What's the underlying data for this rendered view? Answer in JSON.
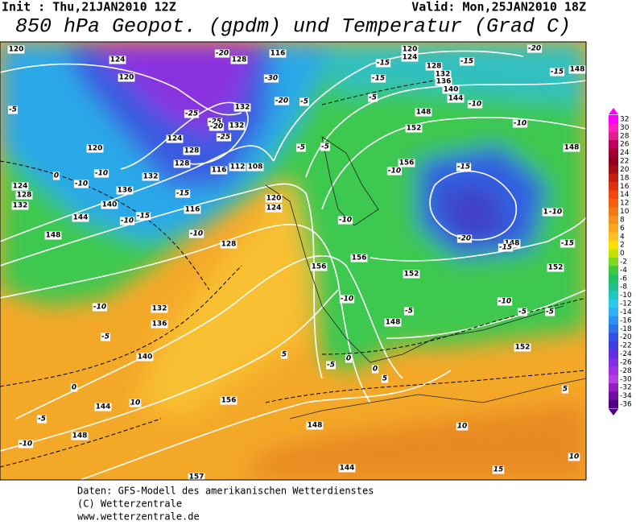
{
  "header": {
    "init": "Init : Thu,21JAN2010 12Z",
    "valid": "Valid: Mon,25JAN2010 18Z",
    "title": "850 hPa Geopot. (gpdm) und Temperatur (Grad C)"
  },
  "map": {
    "geopotential_labels": [
      "120",
      "124",
      "120",
      "128",
      "132",
      "132",
      "124",
      "128",
      "128",
      "116",
      "112",
      "108",
      "120",
      "124",
      "116",
      "120",
      "132",
      "136",
      "140",
      "144",
      "148",
      "124",
      "128",
      "132",
      "128",
      "132",
      "136",
      "140",
      "144",
      "148",
      "157",
      "156",
      "148",
      "144",
      "156",
      "156",
      "152",
      "148",
      "152",
      "152",
      "148",
      "144",
      "148",
      "152",
      "148",
      "156",
      "120",
      "124",
      "128",
      "132",
      "136",
      "140",
      "144",
      "148",
      "116"
    ],
    "temperature_labels": [
      "-20",
      "-30",
      "-20",
      "-25",
      "-25",
      "-20",
      "-25",
      "-5",
      "-10",
      "-10",
      "0",
      "-10",
      "-15",
      "-15",
      "-10",
      "-10",
      "-5",
      "0",
      "-5",
      "-10",
      "-5",
      "-5",
      "-5",
      "-5",
      "-15",
      "-15",
      "-15",
      "-15",
      "-20",
      "-10",
      "-10",
      "-15",
      "-10",
      "-10",
      "-20",
      "-15",
      "-10",
      "-15",
      "-10",
      "-5",
      "-10",
      "-5",
      "-5",
      "-5",
      "0",
      "5",
      "5",
      "0",
      "10",
      "10",
      "15",
      "5",
      "10"
    ]
  },
  "legend": {
    "values": [
      32,
      30,
      28,
      26,
      24,
      22,
      20,
      18,
      16,
      14,
      12,
      10,
      8,
      6,
      4,
      2,
      0,
      -2,
      -4,
      -6,
      -8,
      -10,
      -12,
      -14,
      -16,
      -18,
      -20,
      -22,
      -24,
      -26,
      -28,
      -30,
      -32,
      -34,
      -36
    ],
    "colors": [
      "#ff00ff",
      "#ff20c0",
      "#e0208c",
      "#c00060",
      "#a00030",
      "#900020",
      "#a01010",
      "#c02010",
      "#e03010",
      "#f04810",
      "#f06010",
      "#f07818",
      "#f49020",
      "#f8a820",
      "#fcc020",
      "#fce000",
      "#c8e000",
      "#80d820",
      "#40c840",
      "#20c060",
      "#20c090",
      "#20c8c0",
      "#30c8e8",
      "#30b0f0",
      "#3090f0",
      "#3070e8",
      "#3050e0",
      "#4040d8",
      "#6030e0",
      "#8030e0",
      "#a030e0",
      "#b040e0",
      "#9020c0",
      "#7010a0",
      "#500080"
    ]
  },
  "footer": {
    "lines": [
      "Daten: GFS-Modell des amerikanischen Wetterdienstes",
      "(C) Wetterzentrale",
      "www.wetterzentrale.de"
    ]
  }
}
